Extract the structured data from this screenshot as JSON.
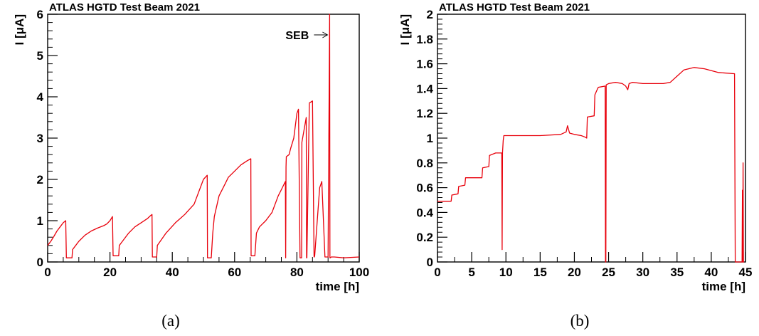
{
  "chart_data": [
    {
      "type": "line",
      "panel_label": "(a)",
      "title": "ATLAS HGTD Test Beam 2021",
      "xlabel": "time [h]",
      "ylabel": "I [μA]",
      "xlim": [
        0,
        100
      ],
      "ylim": [
        0,
        6
      ],
      "xticks": [
        0,
        20,
        40,
        60,
        80,
        100
      ],
      "yticks": [
        0,
        1,
        2,
        3,
        4,
        5,
        6
      ],
      "color": "#e8000b",
      "annotations": [
        {
          "text": "SEB",
          "x": 90.5,
          "y": 5.5
        }
      ],
      "series": [
        {
          "x": [
            0,
            1,
            2,
            3,
            4,
            5,
            5.8,
            6,
            7.8,
            8,
            9,
            10,
            12,
            14,
            16,
            18,
            19,
            20,
            20.8,
            21,
            22.8,
            23,
            24,
            26,
            28,
            30,
            32,
            33,
            33.5,
            33.6,
            35,
            35.2,
            38,
            41,
            44,
            47,
            49,
            50,
            51.2,
            51.3,
            52.5,
            53,
            53.5,
            55,
            57,
            58,
            60,
            62,
            64,
            65.2,
            65.3,
            66.5,
            67,
            68,
            70,
            72,
            74,
            75,
            76.3,
            76.4,
            76.5,
            76.6,
            77.5,
            78,
            79,
            80,
            80.5,
            81,
            81.4,
            81.5,
            81.6,
            83,
            83.1,
            83.2,
            84,
            85,
            85.5,
            85.6,
            85.7,
            87,
            87.3,
            88,
            89,
            90,
            90.5,
            90.6,
            90.7,
            91,
            92,
            95,
            100
          ],
          "y": [
            0.4,
            0.5,
            0.62,
            0.75,
            0.85,
            0.95,
            1.0,
            0.1,
            0.1,
            0.3,
            0.4,
            0.5,
            0.65,
            0.75,
            0.82,
            0.88,
            0.92,
            1.0,
            1.1,
            0.15,
            0.15,
            0.4,
            0.5,
            0.7,
            0.85,
            0.95,
            1.05,
            1.12,
            1.15,
            0.12,
            0.12,
            0.4,
            0.7,
            0.95,
            1.15,
            1.4,
            1.8,
            2.0,
            2.1,
            0.1,
            0.1,
            0.7,
            1.1,
            1.6,
            1.9,
            2.05,
            2.2,
            2.35,
            2.45,
            2.5,
            0.15,
            0.15,
            0.7,
            0.85,
            1.0,
            1.2,
            1.6,
            1.75,
            1.95,
            0.1,
            2.3,
            2.55,
            2.6,
            2.75,
            3.0,
            3.6,
            3.7,
            0.1,
            0.1,
            0.1,
            2.9,
            3.5,
            0.1,
            0.1,
            3.85,
            3.9,
            0.12,
            0.12,
            0.15,
            1.5,
            1.8,
            1.95,
            0.12,
            0.12,
            6.0,
            0.1,
            0.1,
            0.12,
            0.12,
            0.1,
            0.12
          ]
        }
      ]
    },
    {
      "type": "line",
      "panel_label": "(b)",
      "title": "ATLAS HGTD Test Beam 2021",
      "xlabel": "time [h]",
      "ylabel": "I [μA]",
      "xlim": [
        0,
        45
      ],
      "ylim": [
        0,
        2
      ],
      "xticks": [
        0,
        5,
        10,
        15,
        20,
        25,
        30,
        35,
        40,
        45
      ],
      "yticks": [
        0,
        0.2,
        0.4,
        0.6,
        0.8,
        1,
        1.2,
        1.4,
        1.6,
        1.8,
        2
      ],
      "ytick_labels": [
        "0",
        "0.2",
        "0.4",
        "0.6",
        "0.8",
        "1",
        "1.2",
        "1.4",
        "1.6",
        "1.8",
        "2"
      ],
      "color": "#e8000b",
      "series": [
        {
          "x": [
            0,
            0.1,
            2,
            2.1,
            3,
            3.1,
            4,
            4.1,
            6.5,
            6.6,
            7.5,
            7.6,
            8.5,
            8.6,
            9.4,
            9.45,
            9.5,
            9.6,
            9.7,
            12,
            15,
            18,
            18.8,
            19,
            19.3,
            20,
            21,
            21.5,
            21.8,
            21.9,
            22.9,
            23,
            23.4,
            23.5,
            24.5,
            24.55,
            24.6,
            24.65,
            25,
            26,
            27,
            27.5,
            27.8,
            28,
            28.5,
            30,
            33,
            34,
            35,
            36,
            37.5,
            39,
            41,
            43.3,
            43.4,
            43.5,
            44.5,
            44.55,
            44.6,
            44.65,
            44.7,
            44.75,
            44.8
          ],
          "y": [
            0.49,
            0.49,
            0.49,
            0.54,
            0.55,
            0.61,
            0.62,
            0.68,
            0.68,
            0.76,
            0.77,
            0.86,
            0.88,
            0.88,
            0.88,
            0.1,
            0.88,
            0.98,
            1.02,
            1.02,
            1.02,
            1.03,
            1.05,
            1.1,
            1.04,
            1.03,
            1.02,
            1.01,
            1.0,
            1.17,
            1.18,
            1.35,
            1.4,
            1.41,
            1.42,
            0.0,
            0.0,
            1.43,
            1.44,
            1.45,
            1.44,
            1.42,
            1.39,
            1.44,
            1.45,
            1.44,
            1.44,
            1.45,
            1.5,
            1.55,
            1.57,
            1.56,
            1.53,
            1.52,
            1.52,
            0.0,
            0.0,
            0.58,
            0.0,
            0.8,
            0.0,
            0.0,
            0.0
          ]
        }
      ]
    }
  ]
}
